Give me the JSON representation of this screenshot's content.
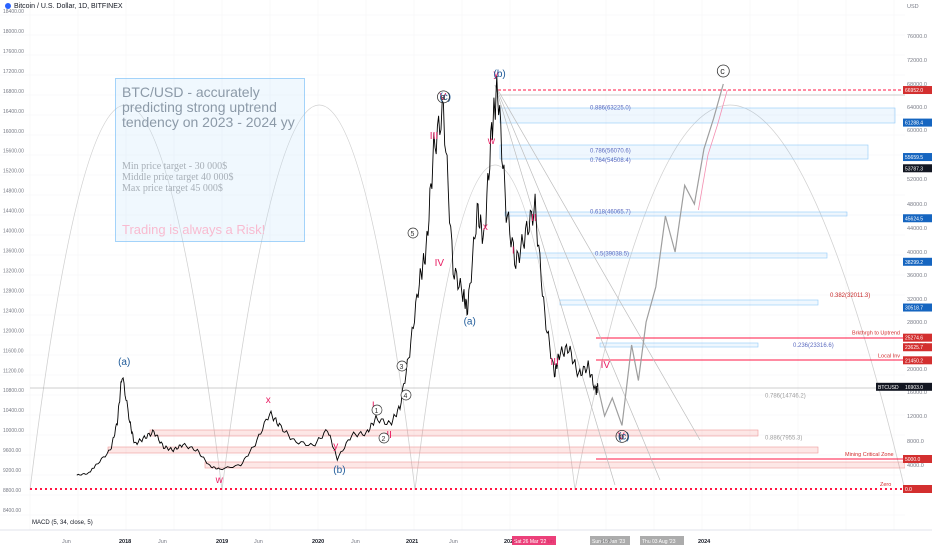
{
  "header": {
    "title": "Bitcoin / U.S. Dollar, 1D, BITFINEX"
  },
  "annotation_box": {
    "headline": "BTC/USD - accurately predicting strong uptrend tendency on 2023 - 2024 yy",
    "targets": [
      "Min price target - 30 000$",
      "Middle price target 40 000$",
      "Max price target 45 000$"
    ],
    "risk_note": "Trading is always a Risk!"
  },
  "macd": {
    "label": "MACD (5, 34, close, 5)"
  },
  "colors": {
    "accent_red": "#ff1744",
    "accent_blue": "#2962ff",
    "price_line": "#000000",
    "projection": "#9e9e9e",
    "wave_red": "#e91e63",
    "wave_blue": "#1e5a99"
  },
  "chart_data": {
    "type": "line",
    "title": "Bitcoin / U.S. Dollar, 1D, BITFINEX",
    "y_scale": "log",
    "left_axis_ticks": [
      "18400.00",
      "18000.00",
      "17600.00",
      "17200.00",
      "16800.00",
      "16400.00",
      "16000.00",
      "15600.00",
      "15200.00",
      "14800.00",
      "14400.00",
      "14000.00",
      "13600.00",
      "13200.00",
      "12800.00",
      "12400.00",
      "12000.00",
      "11600.00",
      "11200.00",
      "10800.00",
      "10400.00",
      "10000.00",
      "9600.00",
      "9200.00",
      "8800.00",
      "8400.00"
    ],
    "right_axis_ticks": [
      "USD",
      "76000.0",
      "72000.0",
      "68000.0",
      "64000.0",
      "60000.0",
      "56000.0",
      "52000.0",
      "48000.0",
      "44000.0",
      "40000.0",
      "36000.0",
      "32000.0",
      "28000.0",
      "24000.0",
      "20000.0",
      "16000.0",
      "12000.0",
      "8000.0",
      "4000.0"
    ],
    "x_ticks": [
      "Jun",
      "2018",
      "Jun",
      "2019",
      "Jun",
      "2020",
      "Jun",
      "2021",
      "Jun",
      "2022",
      "Jun",
      "2023",
      "Jun",
      "2024"
    ],
    "series": [
      {
        "values": [
          [
            2017.5,
            2300
          ],
          [
            2017.62,
            2600
          ],
          [
            2017.7,
            4000
          ],
          [
            2017.85,
            6500
          ],
          [
            2017.92,
            11000
          ],
          [
            2017.97,
            19000
          ],
          [
            2018.05,
            11000
          ],
          [
            2018.1,
            7500
          ],
          [
            2018.2,
            8500
          ],
          [
            2018.3,
            9500
          ],
          [
            2018.4,
            7000
          ],
          [
            2018.5,
            6500
          ],
          [
            2018.6,
            7400
          ],
          [
            2018.75,
            6400
          ],
          [
            2018.88,
            3800
          ],
          [
            2018.98,
            3300
          ],
          [
            2019.2,
            4000
          ],
          [
            2019.35,
            7500
          ],
          [
            2019.5,
            12500
          ],
          [
            2019.6,
            10500
          ],
          [
            2019.75,
            8000
          ],
          [
            2019.95,
            7200
          ],
          [
            2020.1,
            9800
          ],
          [
            2020.2,
            5000
          ],
          [
            2020.35,
            9000
          ],
          [
            2020.5,
            9200
          ],
          [
            2020.6,
            11600
          ],
          [
            2020.75,
            10700
          ],
          [
            2020.85,
            13500
          ],
          [
            2020.95,
            23000
          ],
          [
            2021.05,
            35000
          ],
          [
            2021.12,
            40000
          ],
          [
            2021.2,
            57000
          ],
          [
            2021.3,
            63500
          ],
          [
            2021.4,
            37000
          ],
          [
            2021.5,
            33000
          ],
          [
            2021.55,
            30000
          ],
          [
            2021.65,
            47000
          ],
          [
            2021.72,
            42000
          ],
          [
            2021.8,
            60000
          ],
          [
            2021.86,
            67500
          ],
          [
            2021.95,
            47000
          ],
          [
            2022.05,
            38000
          ],
          [
            2022.15,
            43000
          ],
          [
            2022.25,
            47500
          ],
          [
            2022.35,
            29000
          ],
          [
            2022.45,
            19000
          ],
          [
            2022.5,
            22500
          ],
          [
            2022.6,
            23500
          ],
          [
            2022.7,
            19000
          ],
          [
            2022.8,
            20500
          ],
          [
            2022.88,
            16000
          ],
          [
            2022.9,
            16900
          ]
        ]
      },
      {
        "name": "projection",
        "values": [
          [
            2022.9,
            16900
          ],
          [
            2022.97,
            12000
          ],
          [
            2023.05,
            15000
          ],
          [
            2023.15,
            10500
          ],
          [
            2023.25,
            24000
          ],
          [
            2023.32,
            18000
          ],
          [
            2023.4,
            28000
          ],
          [
            2023.5,
            34000
          ],
          [
            2023.6,
            46000
          ],
          [
            2023.7,
            40000
          ],
          [
            2023.8,
            51000
          ],
          [
            2023.9,
            48000
          ],
          [
            2024.0,
            57000
          ],
          [
            2024.1,
            62000
          ],
          [
            2024.2,
            68000
          ]
        ]
      }
    ],
    "fib_levels": [
      {
        "label": "0.886(63225.0)",
        "value": 63225
      },
      {
        "label": "0.786(56070.6)",
        "value": 56070.6
      },
      {
        "label": "0.764(54508.4)",
        "value": 54508.4
      },
      {
        "label": "0.618(46065.7)",
        "value": 46065.7
      },
      {
        "label": "0.5(39038.5)",
        "value": 39038.5
      },
      {
        "label": "0.382(32011.3)",
        "value": 32011.3
      },
      {
        "label": "0.236(23316.6)",
        "value": 23316.6
      },
      {
        "label": "0.786(14746.2)",
        "value": 14746.2
      },
      {
        "label": "0.886(7955.3)",
        "value": 7955.3
      }
    ],
    "price_tags": [
      {
        "label": "66952.0",
        "value": 66952
      },
      {
        "label": "61288.4",
        "value": 61288.4
      },
      {
        "label": "55659.5",
        "value": 55659.5
      },
      {
        "label": "53787.3",
        "value": 53787.3
      },
      {
        "label": "45624.5",
        "value": 45624.5
      },
      {
        "label": "38299.2",
        "value": 38299.2
      },
      {
        "label": "30518.7",
        "value": 30518.7
      },
      {
        "label": "25274.6",
        "value": 25274.6
      },
      {
        "label": "23625.7",
        "value": 23625.7
      },
      {
        "label": "21450.2",
        "value": 21450.2
      },
      {
        "label": "BTCUSD",
        "value": 16903
      },
      {
        "label": "16903.0",
        "value": 16903
      },
      {
        "label": "5000.0",
        "value": 5000
      },
      {
        "label": "0.0",
        "value": 0
      }
    ],
    "annotations": [
      {
        "text": "Brkthrgh to Uptrend",
        "value": 25274.6
      },
      {
        "text": "Local Inv",
        "value": 21450.2
      },
      {
        "text": "Mining Critical Zone",
        "value": 5000
      },
      {
        "text": "Zero",
        "value": 0
      }
    ],
    "date_labels": [
      "Sat 26 Mar '22",
      "Sun 15 Jan '23",
      "Thu 03 Aug '23"
    ],
    "wave_labels": [
      {
        "text": "(a)",
        "x": 2017.97,
        "y": 19000
      },
      {
        "text": "x",
        "x": 2019.5,
        "y": 12500
      },
      {
        "text": "w",
        "x": 2018.98,
        "y": 3300
      },
      {
        "text": "y",
        "x": 2020.2,
        "y": 5000
      },
      {
        "text": "(b)",
        "x": 2020.2,
        "y": 5000
      },
      {
        "text": "I",
        "x": 2020.6,
        "y": 11600
      },
      {
        "text": "II",
        "x": 2020.75,
        "y": 10700
      },
      {
        "text": "III",
        "x": 2021.2,
        "y": 57000
      },
      {
        "text": "IV",
        "x": 2021.25,
        "y": 40000
      },
      {
        "text": "V",
        "x": 2021.3,
        "y": 63500
      },
      {
        "text": "(c)",
        "x": 2021.3,
        "y": 63500
      },
      {
        "text": "a",
        "x": 2021.3,
        "y": 63500
      },
      {
        "text": "(a)",
        "x": 2021.55,
        "y": 30000
      },
      {
        "text": "w",
        "x": 2021.8,
        "y": 60000
      },
      {
        "text": "x",
        "x": 2021.75,
        "y": 42000
      },
      {
        "text": "y",
        "x": 2021.86,
        "y": 67500
      },
      {
        "text": "(b)",
        "x": 2021.86,
        "y": 67500
      },
      {
        "text": "I",
        "x": 2022.05,
        "y": 38000
      },
      {
        "text": "II",
        "x": 2022.25,
        "y": 47500
      },
      {
        "text": "III",
        "x": 2022.45,
        "y": 19000
      },
      {
        "text": "IV",
        "x": 2022.97,
        "y": 22500
      },
      {
        "text": "V",
        "x": 2023.15,
        "y": 10500
      },
      {
        "text": "(c)",
        "x": 2023.15,
        "y": 10500
      },
      {
        "text": "b",
        "x": 2023.15,
        "y": 10500
      },
      {
        "text": "c",
        "x": 2024.2,
        "y": 68000
      }
    ],
    "circled_numbers": [
      "1",
      "2",
      "3",
      "4",
      "5"
    ]
  }
}
